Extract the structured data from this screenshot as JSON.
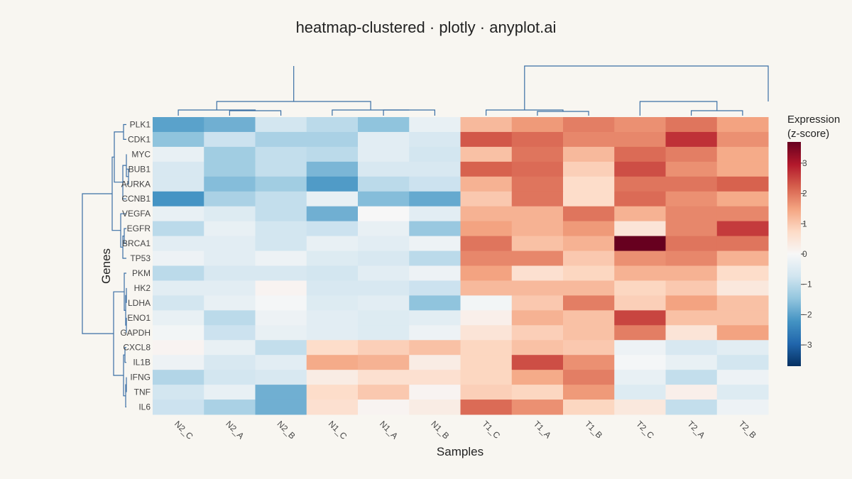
{
  "chart_data": {
    "type": "heatmap",
    "title": "heatmap-clustered · plotly · anyplot.ai",
    "xlabel": "Samples",
    "ylabel": "Genes",
    "colorbar": {
      "title_line1": "Expression",
      "title_line2": "(z-score)",
      "range": [
        -3.7,
        3.7
      ],
      "ticks": [
        3,
        2,
        1,
        0,
        -1,
        -2,
        -3
      ],
      "tick_labels": [
        "3",
        "2",
        "1",
        "0",
        "−1",
        "−2",
        "−3"
      ],
      "colorscale": [
        "#053061",
        "#2166AC",
        "#4393C3",
        "#92C5DE",
        "#D1E5F0",
        "#F7F7F7",
        "#FDDBC7",
        "#F4A582",
        "#D6604D",
        "#B2182B",
        "#67001F"
      ]
    },
    "columns": [
      "N2_C",
      "N2_A",
      "N2_B",
      "N1_C",
      "N1_A",
      "N1_B",
      "T1_C",
      "T1_A",
      "T1_B",
      "T2_C",
      "T2_A",
      "T2_B"
    ],
    "rows": [
      "PLK1",
      "CDK1",
      "MYC",
      "BUB1",
      "AURKA",
      "CCNB1",
      "VEGFA",
      "EGFR",
      "BRCA1",
      "TP53",
      "PKM",
      "HK2",
      "LDHA",
      "ENO1",
      "GAPDH",
      "CXCL8",
      "IL1B",
      "IFNG",
      "TNF",
      "IL6"
    ],
    "values": [
      [
        -2.0,
        -1.8,
        -0.7,
        -1.0,
        -1.5,
        -0.3,
        1.2,
        1.6,
        1.9,
        1.7,
        2.0,
        1.5
      ],
      [
        -1.5,
        -0.8,
        -1.2,
        -1.2,
        -0.4,
        -0.6,
        2.3,
        2.1,
        1.8,
        1.8,
        2.7,
        1.7
      ],
      [
        -0.3,
        -1.3,
        -0.9,
        -1.0,
        -0.4,
        -0.7,
        1.1,
        2.0,
        1.2,
        2.1,
        1.9,
        1.4
      ],
      [
        -0.6,
        -1.3,
        -0.9,
        -1.7,
        -0.6,
        -0.6,
        2.2,
        2.1,
        0.9,
        2.4,
        1.7,
        1.4
      ],
      [
        -0.6,
        -1.6,
        -1.3,
        -2.1,
        -1.0,
        -0.8,
        1.3,
        2.0,
        0.7,
        2.0,
        2.0,
        2.2
      ],
      [
        -2.2,
        -1.2,
        -0.9,
        -0.3,
        -1.6,
        -1.9,
        1.0,
        2.0,
        0.7,
        2.1,
        1.7,
        1.4
      ],
      [
        -0.3,
        -0.5,
        -0.9,
        -1.8,
        0.0,
        -0.4,
        1.3,
        1.3,
        2.0,
        1.3,
        1.8,
        1.8
      ],
      [
        -1.0,
        -0.3,
        -0.7,
        -0.8,
        -0.3,
        -1.4,
        1.5,
        1.3,
        1.6,
        0.5,
        1.8,
        2.6
      ],
      [
        -0.4,
        -0.4,
        -0.7,
        -0.3,
        -0.4,
        -0.2,
        2.0,
        1.1,
        1.3,
        3.7,
        2.0,
        2.0
      ],
      [
        -0.2,
        -0.4,
        -0.2,
        -0.5,
        -0.6,
        -1.0,
        1.8,
        1.8,
        1.0,
        1.7,
        1.8,
        1.3
      ],
      [
        -1.0,
        -0.6,
        -0.6,
        -0.7,
        -0.4,
        -0.2,
        1.5,
        0.6,
        0.8,
        1.3,
        1.3,
        0.7
      ],
      [
        -0.4,
        -0.4,
        0.1,
        -0.6,
        -0.6,
        -0.8,
        1.2,
        1.2,
        1.2,
        0.8,
        1.0,
        0.4
      ],
      [
        -0.7,
        -0.3,
        -0.05,
        -0.5,
        -0.4,
        -1.5,
        -0.1,
        1.0,
        1.9,
        0.9,
        1.5,
        1.1
      ],
      [
        -0.3,
        -1.0,
        -0.2,
        -0.4,
        -0.5,
        -0.4,
        0.2,
        1.3,
        1.1,
        2.5,
        1.1,
        1.1
      ],
      [
        -0.1,
        -0.8,
        -0.3,
        -0.4,
        -0.5,
        -0.2,
        0.5,
        0.9,
        1.1,
        1.9,
        0.5,
        1.5
      ],
      [
        0.1,
        -0.3,
        -0.9,
        0.7,
        0.9,
        1.1,
        0.8,
        1.1,
        1.0,
        -0.2,
        -0.6,
        -0.4
      ],
      [
        -0.2,
        -0.6,
        -0.4,
        1.4,
        1.3,
        0.3,
        0.8,
        2.4,
        1.7,
        -0.05,
        -0.3,
        -0.7
      ],
      [
        -1.1,
        -0.7,
        -0.6,
        0.3,
        0.6,
        0.6,
        0.8,
        1.4,
        1.9,
        -0.3,
        -0.9,
        -0.2
      ],
      [
        -0.7,
        -0.3,
        -1.8,
        0.7,
        1.0,
        0.1,
        0.9,
        0.8,
        1.6,
        -0.5,
        0.2,
        -0.5
      ],
      [
        -0.8,
        -1.2,
        -1.8,
        0.6,
        0.1,
        0.3,
        2.1,
        1.7,
        0.8,
        0.4,
        -0.9,
        -0.2
      ]
    ]
  }
}
